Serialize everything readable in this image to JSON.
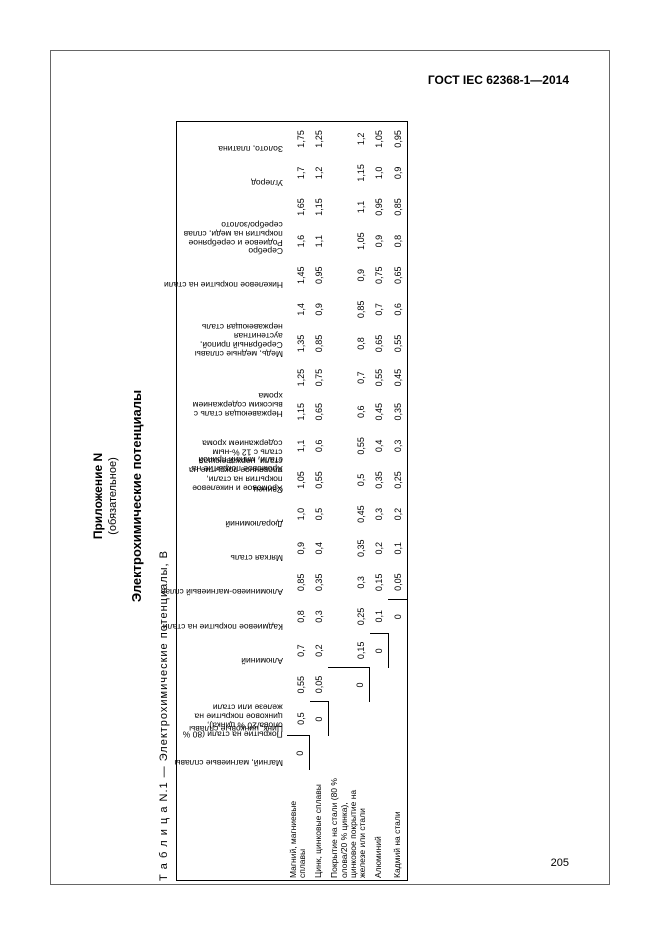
{
  "doc_id": "ГОСТ IEC 62368-1—2014",
  "page_number": "205",
  "appendix": "Приложение N",
  "appendix_sub": "(обязательное)",
  "title": "Электрохимические потенциалы",
  "caption": "Т а б л и ц а   N.1 — Электрохимические потенциалы, В",
  "columns": [
    "Магний, магниевые сплавы",
    "Цинк, цинковые сплавы",
    "Покрытие на стали (80 % олова/20 % цинка), цинковое покрытие на железе или стали",
    "Алюминий",
    "Кадмиевое покрытие на стали",
    "Алюминиево-магниевый сплав",
    "Мягкая сталь",
    "Дюралюминий",
    "Свинец",
    "Хромовое покрытие на стали, мягкий припой",
    "Хромовое и никелевое покрытия на стали, оловянное покрытие на стали, нержавеющая сталь с 12 %-ным содержанием хрома",
    "Нержавеющая сталь с высоким содержанием хрома",
    "Медь, медные сплавы",
    "Серебряный припой, аустенитная нержавеющая сталь",
    "Никелевое покрытие на стали",
    "Серебро",
    "Родиевое и серебряное покрытия на меди, сплав серебро/золото",
    "Углерод",
    "Золото, платина"
  ],
  "rows": [
    {
      "label": "Магний, магниевые сплавы",
      "vals": [
        "0",
        "0,5",
        "0,55",
        "0,7",
        "0,8",
        "0,85",
        "0,9",
        "1,0",
        "1,05",
        "1,1",
        "1,15",
        "1,25",
        "1,35",
        "1,4",
        "1,45",
        "1,6",
        "1,65",
        "1,7",
        "1,75"
      ]
    },
    {
      "label": "Цинк, цинковые сплавы",
      "vals": [
        "",
        "0",
        "0,05",
        "0,2",
        "0,3",
        "0,35",
        "0,4",
        "0,5",
        "0,55",
        "0,6",
        "0,65",
        "0,75",
        "0,85",
        "0,9",
        "0,95",
        "1,1",
        "1,15",
        "1,2",
        "1,25"
      ]
    },
    {
      "label": "Покрытие на стали (80 % олова/20 % цинка), цинковое покрытие на железе или стали",
      "vals": [
        "",
        "",
        "0",
        "0,15",
        "0,25",
        "0,3",
        "0,35",
        "0,45",
        "0,5",
        "0,55",
        "0,6",
        "0,7",
        "0,8",
        "0,85",
        "0,9",
        "1,05",
        "1,1",
        "1,15",
        "1,2"
      ]
    },
    {
      "label": "Алюминий",
      "vals": [
        "",
        "",
        "",
        "0",
        "0,1",
        "0,15",
        "0,2",
        "0,3",
        "0,35",
        "0,4",
        "0,45",
        "0,55",
        "0,65",
        "0,7",
        "0,75",
        "0,9",
        "0,95",
        "1,0",
        "1,05"
      ]
    },
    {
      "label": "Кадмий на стали",
      "vals": [
        "",
        "",
        "",
        "",
        "0",
        "0,05",
        "0,1",
        "0,2",
        "0,25",
        "0,3",
        "0,35",
        "0,45",
        "0,55",
        "0,6",
        "0,65",
        "0,8",
        "0,85",
        "0,9",
        "0,95"
      ]
    }
  ]
}
